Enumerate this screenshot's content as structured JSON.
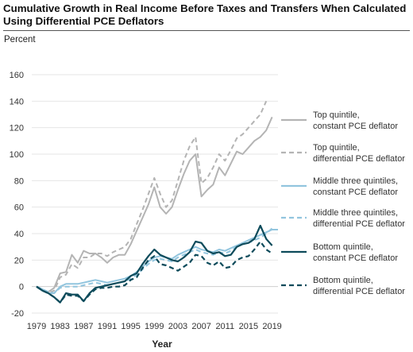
{
  "chart_data": {
    "type": "line",
    "title": "Cumulative Growth in Real Income Before Taxes and Transfers When Calculated Using Differential PCE Deflators",
    "ylabel": "Percent",
    "xlabel": "Year",
    "ylim": [
      -20,
      160
    ],
    "yticks": [
      -20,
      0,
      20,
      40,
      60,
      80,
      100,
      120,
      140,
      160
    ],
    "xticks": [
      1979,
      1983,
      1987,
      1991,
      1995,
      1999,
      2003,
      2007,
      2011,
      2015,
      2019
    ],
    "x": [
      1979,
      1980,
      1981,
      1982,
      1983,
      1984,
      1985,
      1986,
      1987,
      1988,
      1989,
      1990,
      1991,
      1992,
      1993,
      1994,
      1995,
      1996,
      1997,
      1998,
      1999,
      2000,
      2001,
      2002,
      2003,
      2004,
      2005,
      2006,
      2007,
      2008,
      2009,
      2010,
      2011,
      2012,
      2013,
      2014,
      2015,
      2016,
      2017,
      2018,
      2019,
      2020
    ],
    "legend_position": "right",
    "series": [
      {
        "name": "Top quintile, constant PCE deflator",
        "color": "#b4b4b4",
        "dash": "solid",
        "values": [
          0,
          -3,
          -4,
          -1,
          10,
          11,
          24,
          18,
          27,
          25,
          25,
          22,
          18,
          22,
          24,
          24,
          32,
          42,
          52,
          62,
          75,
          60,
          55,
          60,
          73,
          85,
          95,
          100,
          68,
          73,
          77,
          90,
          84,
          93,
          102,
          100,
          105,
          110,
          113,
          118,
          128,
          null
        ]
      },
      {
        "name": "Top quintile, differential PCE deflator",
        "color": "#b4b4b4",
        "dash": "dashed",
        "values": [
          0,
          -3,
          -5,
          -3,
          7,
          9,
          17,
          14,
          22,
          22,
          25,
          25,
          23,
          26,
          28,
          30,
          36,
          47,
          58,
          70,
          82,
          70,
          60,
          65,
          80,
          95,
          106,
          113,
          78,
          82,
          90,
          100,
          95,
          103,
          112,
          115,
          120,
          125,
          130,
          140,
          null,
          null
        ]
      },
      {
        "name": "Middle three quintiles, constant PCE deflator",
        "color": "#92c5de",
        "dash": "solid",
        "values": [
          0,
          -2,
          -5,
          -5,
          0,
          2,
          2,
          2,
          3,
          4,
          5,
          4,
          3,
          4,
          5,
          6,
          8,
          11,
          15,
          19,
          22,
          23,
          22,
          21,
          24,
          26,
          28,
          30,
          28,
          27,
          26,
          28,
          27,
          29,
          31,
          33,
          35,
          37,
          39,
          41,
          43,
          43
        ]
      },
      {
        "name": "Middle three quintiles, differential PCE deflator",
        "color": "#92c5de",
        "dash": "dashed",
        "values": [
          0,
          -2,
          -4,
          -5,
          -1,
          0,
          0,
          0,
          1,
          2,
          3,
          2,
          1,
          2,
          3,
          4,
          6,
          9,
          13,
          17,
          20,
          21,
          20,
          19,
          22,
          24,
          26,
          28,
          26,
          25,
          24,
          26,
          25,
          27,
          30,
          32,
          33,
          35,
          37,
          40,
          44,
          null
        ]
      },
      {
        "name": "Bottom quintile, constant PCE deflator",
        "color": "#0d4b5b",
        "dash": "solid",
        "values": [
          0,
          -3,
          -5,
          -8,
          -12,
          -5,
          -6,
          -6,
          -11,
          -5,
          -1,
          0,
          1,
          2,
          3,
          4,
          8,
          10,
          17,
          23,
          28,
          24,
          22,
          20,
          19,
          22,
          26,
          34,
          33,
          27,
          25,
          26,
          23,
          24,
          30,
          32,
          33,
          36,
          46,
          36,
          31,
          null
        ]
      },
      {
        "name": "Bottom quintile, differential PCE deflator",
        "color": "#0d4b5b",
        "dash": "dashed",
        "values": [
          0,
          -3,
          -5,
          -8,
          -12,
          -6,
          -7,
          -7,
          -11,
          -6,
          -2,
          -1,
          -1,
          0,
          0,
          1,
          5,
          7,
          14,
          20,
          23,
          17,
          16,
          14,
          12,
          15,
          18,
          24,
          23,
          18,
          16,
          19,
          14,
          15,
          20,
          22,
          23,
          28,
          34,
          28,
          25,
          null
        ]
      }
    ]
  }
}
